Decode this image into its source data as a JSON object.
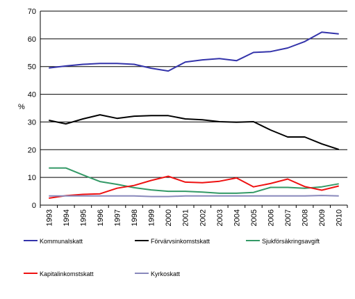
{
  "chart_data": {
    "type": "line",
    "title": "",
    "xlabel": "",
    "ylabel": "%",
    "ylim": [
      0,
      70
    ],
    "yticks": [
      0,
      10,
      20,
      30,
      40,
      50,
      60,
      70
    ],
    "grid": "horizontal",
    "legend_position": "bottom",
    "categories": [
      "1993",
      "1994",
      "1995",
      "1996",
      "1997",
      "1998",
      "1999",
      "2000",
      "2001",
      "2002",
      "2003",
      "2004",
      "2005",
      "2006",
      "2007",
      "2008",
      "2009",
      "2010"
    ],
    "series": [
      {
        "name": "Kommunalskatt",
        "color": "#3333aa",
        "values": [
          49.5,
          50.2,
          50.8,
          51.1,
          51.1,
          50.8,
          49.4,
          48.4,
          51.6,
          52.4,
          52.9,
          52.1,
          55.1,
          55.4,
          56.7,
          59.0,
          62.4,
          61.8
        ]
      },
      {
        "name": "Förvärvsinkomstskatt",
        "color": "#000000",
        "values": [
          30.6,
          29.3,
          31.1,
          32.6,
          31.3,
          32.1,
          32.3,
          32.3,
          31.1,
          30.8,
          30.1,
          29.9,
          30.1,
          27.1,
          24.6,
          24.6,
          22.1,
          20.1
        ]
      },
      {
        "name": "Sjukförsäkringsavgift",
        "color": "#339966",
        "values": [
          13.4,
          13.4,
          10.9,
          8.5,
          7.5,
          6.3,
          5.5,
          5.0,
          5.0,
          4.7,
          4.3,
          4.3,
          4.6,
          6.4,
          6.4,
          6.1,
          6.6,
          7.7
        ]
      },
      {
        "name": "Kapitalinkomstskatt",
        "color": "#ee1111",
        "values": [
          2.5,
          3.4,
          3.9,
          4.1,
          6.1,
          7.1,
          8.9,
          10.4,
          8.3,
          8.1,
          8.6,
          9.8,
          6.6,
          7.8,
          9.4,
          6.7,
          5.4,
          6.9
        ]
      },
      {
        "name": "Kyrkoskatt",
        "color": "#8888bb",
        "values": [
          3.3,
          3.3,
          3.3,
          3.3,
          3.3,
          3.3,
          3.1,
          3.1,
          3.3,
          3.3,
          3.3,
          3.3,
          3.3,
          3.3,
          3.3,
          3.3,
          3.5,
          3.3
        ]
      }
    ]
  }
}
